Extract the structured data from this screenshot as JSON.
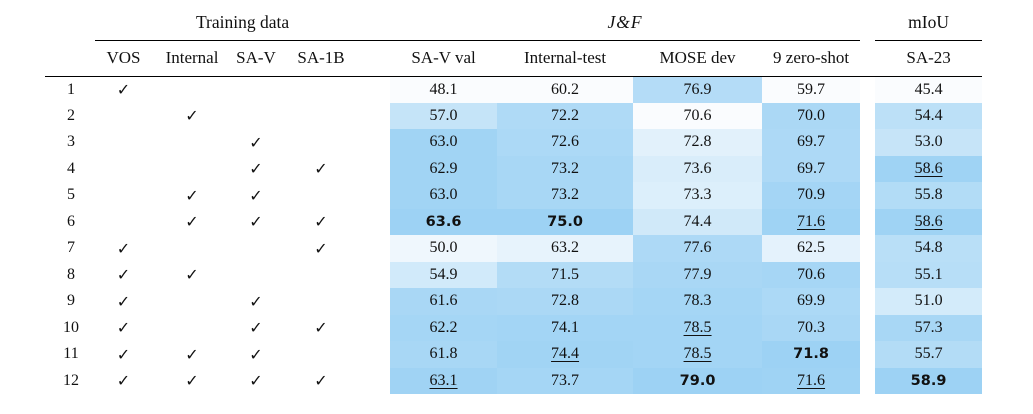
{
  "page": {
    "background": "#ffffff"
  },
  "table": {
    "group_headers": [
      "Training data",
      "J&F",
      "mIoU"
    ],
    "check_columns": [
      "VOS",
      "Internal",
      "SA-V",
      "SA-1B"
    ],
    "metric_columns": [
      "SA-V val",
      "Internal-test",
      "MOSE dev",
      "9 zero-shot"
    ],
    "miou_columns": [
      "SA-23"
    ],
    "check_glyph": "✓"
  },
  "colors": {
    "heat_low": "#fafcfe",
    "heat_high": "#9dd2f4",
    "rule": "#000000"
  },
  "chart_data": {
    "type": "heatmap",
    "notes": "ablation table; cells shaded per-column from low (white) to high (blue); bold = best, underline = second-best styling as shown",
    "check_columns": [
      "VOS",
      "Internal",
      "SA-V",
      "SA-1B"
    ],
    "value_columns": [
      "SA-V val",
      "Internal-test",
      "MOSE dev",
      "9 zero-shot",
      "SA-23"
    ],
    "heatmap_normalization": "per-column min-max",
    "rows": [
      {
        "n": "1",
        "checks": [
          1,
          0,
          0,
          0
        ],
        "values": [
          48.1,
          60.2,
          76.9,
          59.7,
          45.4
        ],
        "bold": [],
        "underline": []
      },
      {
        "n": "2",
        "checks": [
          0,
          1,
          0,
          0
        ],
        "values": [
          57.0,
          72.2,
          70.6,
          70.0,
          54.4
        ],
        "bold": [],
        "underline": []
      },
      {
        "n": "3",
        "checks": [
          0,
          0,
          1,
          0
        ],
        "values": [
          63.0,
          72.6,
          72.8,
          69.7,
          53.0
        ],
        "bold": [],
        "underline": []
      },
      {
        "n": "4",
        "checks": [
          0,
          0,
          1,
          1
        ],
        "values": [
          62.9,
          73.2,
          73.6,
          69.7,
          58.6
        ],
        "bold": [],
        "underline": [
          4
        ]
      },
      {
        "n": "5",
        "checks": [
          0,
          1,
          1,
          0
        ],
        "values": [
          63.0,
          73.2,
          73.3,
          70.9,
          55.8
        ],
        "bold": [],
        "underline": []
      },
      {
        "n": "6",
        "checks": [
          0,
          1,
          1,
          1
        ],
        "values": [
          63.6,
          75.0,
          74.4,
          71.6,
          58.6
        ],
        "bold": [
          0,
          1
        ],
        "underline": [
          3,
          4
        ]
      },
      {
        "n": "7",
        "checks": [
          1,
          0,
          0,
          1
        ],
        "values": [
          50.0,
          63.2,
          77.6,
          62.5,
          54.8
        ],
        "bold": [],
        "underline": []
      },
      {
        "n": "8",
        "checks": [
          1,
          1,
          0,
          0
        ],
        "values": [
          54.9,
          71.5,
          77.9,
          70.6,
          55.1
        ],
        "bold": [],
        "underline": []
      },
      {
        "n": "9",
        "checks": [
          1,
          0,
          1,
          0
        ],
        "values": [
          61.6,
          72.8,
          78.3,
          69.9,
          51.0
        ],
        "bold": [],
        "underline": []
      },
      {
        "n": "10",
        "checks": [
          1,
          0,
          1,
          1
        ],
        "values": [
          62.2,
          74.1,
          78.5,
          70.3,
          57.3
        ],
        "bold": [],
        "underline": [
          2
        ]
      },
      {
        "n": "11",
        "checks": [
          1,
          1,
          1,
          0
        ],
        "values": [
          61.8,
          74.4,
          78.5,
          71.8,
          55.7
        ],
        "bold": [
          3
        ],
        "underline": [
          1,
          2
        ]
      },
      {
        "n": "12",
        "checks": [
          1,
          1,
          1,
          1
        ],
        "values": [
          63.1,
          73.7,
          79.0,
          71.6,
          58.9
        ],
        "bold": [
          2,
          4
        ],
        "underline": [
          0,
          3
        ]
      }
    ]
  }
}
